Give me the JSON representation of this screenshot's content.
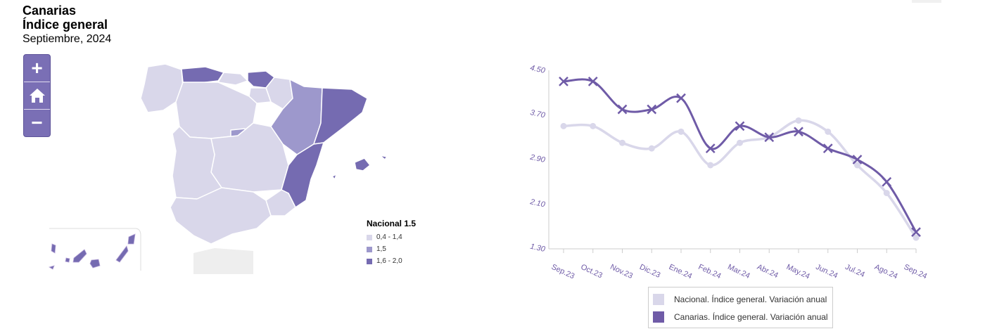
{
  "header": {
    "region": "Canarias",
    "index": "Índice general",
    "period": "Septiembre, 2024"
  },
  "zoom": {
    "in": "+",
    "home": "home-icon",
    "out": "−"
  },
  "map": {
    "legend_title": "Nacional 1.5",
    "legend": [
      {
        "label": "0,4 - 1,4",
        "color": "#d9d7ea"
      },
      {
        "label": "1,5",
        "color": "#9d98cc"
      },
      {
        "label": "1,6 - 2,0",
        "color": "#756bb1"
      }
    ]
  },
  "colors": {
    "nacional": "#d9d7ea",
    "canarias": "#6f5ba7"
  },
  "chart_data": {
    "type": "line",
    "categories": [
      "Sep.23",
      "Oct.23",
      "Nov.23",
      "Dic.23",
      "Ene.24",
      "Feb.24",
      "Mar.24",
      "Abr.24",
      "May.24",
      "Jun.24",
      "Jul.24",
      "Ago.24",
      "Sep.24"
    ],
    "y_ticks": [
      "4.50",
      "3.70",
      "2.90",
      "2.10",
      "1.30"
    ],
    "ylim": [
      1.3,
      4.5
    ],
    "series": [
      {
        "name": "Nacional. Índice general. Variación anual",
        "values": [
          3.5,
          3.5,
          3.2,
          3.1,
          3.4,
          2.8,
          3.2,
          3.3,
          3.6,
          3.4,
          2.8,
          2.3,
          1.5
        ]
      },
      {
        "name": "Canarias. Índice general. Variación anual",
        "values": [
          4.3,
          4.3,
          3.8,
          3.8,
          4.0,
          3.1,
          3.5,
          3.3,
          3.4,
          3.1,
          2.9,
          2.5,
          1.6
        ]
      }
    ],
    "legend_position": "bottom"
  }
}
